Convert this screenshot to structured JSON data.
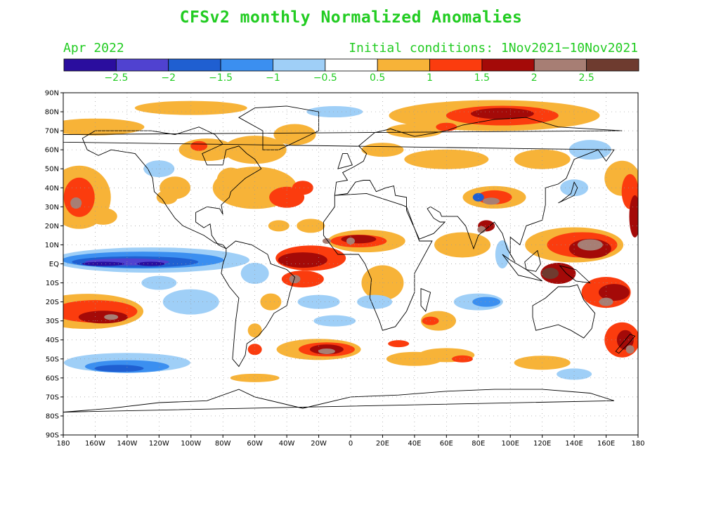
{
  "title": "CFSv2 monthly Normalized Anomalies",
  "valid_month": "Apr 2022",
  "initial_conditions": "Initial conditions: 1Nov2021−10Nov2021",
  "colorbar": {
    "colors": [
      "#2a0d9e",
      "#5042d0",
      "#1f5fd1",
      "#3b8ff0",
      "#9fcff7",
      "#ffffff",
      "#f7b338",
      "#fb3c0e",
      "#a40a08",
      "#a77e74",
      "#6e3b2f"
    ],
    "labels": [
      "−2.5",
      "−2",
      "−1.5",
      "−1",
      "−0.5",
      "0.5",
      "1",
      "1.5",
      "2",
      "2.5"
    ]
  },
  "axes": {
    "lat_labels": [
      "90N",
      "80N",
      "70N",
      "60N",
      "50N",
      "40N",
      "30N",
      "20N",
      "10N",
      "EQ",
      "10S",
      "20S",
      "30S",
      "40S",
      "50S",
      "60S",
      "70S",
      "80S",
      "90S"
    ],
    "lon_labels": [
      "180",
      "160W",
      "140W",
      "120W",
      "100W",
      "80W",
      "60W",
      "40W",
      "20W",
      "0",
      "20E",
      "40E",
      "60E",
      "80E",
      "100E",
      "120E",
      "140E",
      "160E",
      "180"
    ]
  }
}
